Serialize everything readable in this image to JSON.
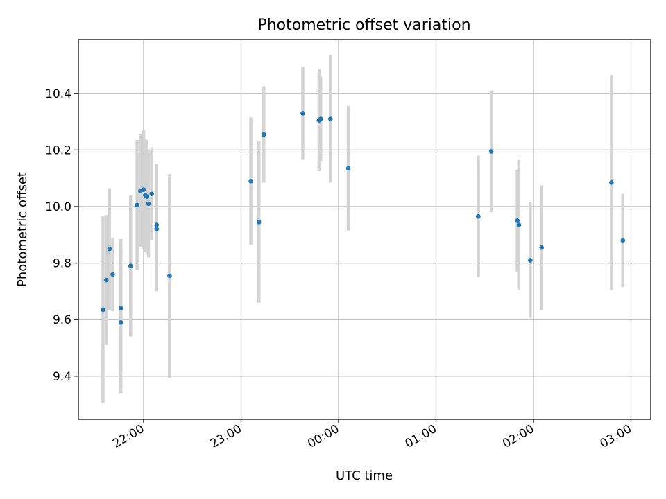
{
  "chart_data": {
    "type": "scatter",
    "title": "Photometric offset variation",
    "xlabel": "UTC time",
    "ylabel": "Photometric offset",
    "grid": true,
    "x_ticks": [
      "22:00",
      "23:00",
      "00:00",
      "01:00",
      "02:00",
      "03:00"
    ],
    "y_ticks": [
      "9.4",
      "9.6",
      "9.8",
      "10.0",
      "10.2",
      "10.4"
    ],
    "colors": {
      "point": "#1f77b4",
      "errorbar": "#d3d3d3",
      "grid": "#b0b0b0"
    },
    "points": [
      {
        "x": "21:35",
        "y": 9.635,
        "err": 0.33
      },
      {
        "x": "21:37",
        "y": 9.74,
        "err": 0.23
      },
      {
        "x": "21:39",
        "y": 9.85,
        "err": 0.215
      },
      {
        "x": "21:41",
        "y": 9.76,
        "err": 0.13
      },
      {
        "x": "21:46",
        "y": 9.59,
        "err": 0.25
      },
      {
        "x": "21:46",
        "y": 9.64,
        "err": 0.245
      },
      {
        "x": "21:52",
        "y": 9.79,
        "err": 0.25
      },
      {
        "x": "21:56",
        "y": 10.005,
        "err": 0.23
      },
      {
        "x": "21:58",
        "y": 10.055,
        "err": 0.2
      },
      {
        "x": "22:00",
        "y": 10.06,
        "err": 0.21
      },
      {
        "x": "22:01",
        "y": 10.04,
        "err": 0.2
      },
      {
        "x": "22:02",
        "y": 10.035,
        "err": 0.2
      },
      {
        "x": "22:03",
        "y": 10.01,
        "err": 0.19
      },
      {
        "x": "22:05",
        "y": 10.045,
        "err": 0.165
      },
      {
        "x": "22:08",
        "y": 9.935,
        "err": 0.215
      },
      {
        "x": "22:08",
        "y": 9.92,
        "err": 0.22
      },
      {
        "x": "22:16",
        "y": 9.755,
        "err": 0.36
      },
      {
        "x": "23:06",
        "y": 10.09,
        "err": 0.225
      },
      {
        "x": "23:11",
        "y": 9.945,
        "err": 0.285
      },
      {
        "x": "23:14",
        "y": 10.255,
        "err": 0.17
      },
      {
        "x": "23:38",
        "y": 10.33,
        "err": 0.165
      },
      {
        "x": "23:48",
        "y": 10.305,
        "err": 0.18
      },
      {
        "x": "23:49",
        "y": 10.31,
        "err": 0.15
      },
      {
        "x": "23:55",
        "y": 10.31,
        "err": 0.225
      },
      {
        "x": "00:06",
        "y": 10.135,
        "err": 0.22
      },
      {
        "x": "01:26",
        "y": 9.965,
        "err": 0.215
      },
      {
        "x": "01:26",
        "y": 9.965,
        "err": 0.17
      },
      {
        "x": "01:34",
        "y": 10.195,
        "err": 0.215
      },
      {
        "x": "01:50",
        "y": 9.95,
        "err": 0.18
      },
      {
        "x": "01:51",
        "y": 9.935,
        "err": 0.23
      },
      {
        "x": "01:58",
        "y": 9.81,
        "err": 0.205
      },
      {
        "x": "02:05",
        "y": 9.855,
        "err": 0.22
      },
      {
        "x": "02:48",
        "y": 10.085,
        "err": 0.38
      },
      {
        "x": "02:55",
        "y": 9.88,
        "err": 0.165
      }
    ]
  }
}
